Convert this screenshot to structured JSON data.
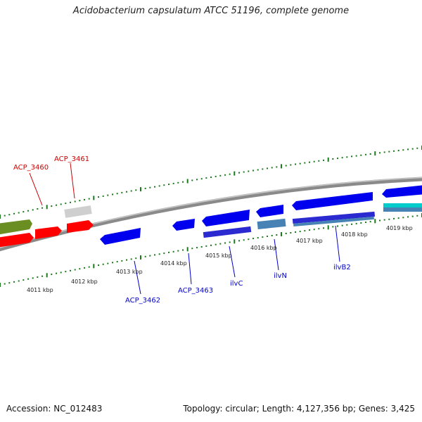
{
  "title": "Acidobacterium capsulatum ATCC 51196, complete genome",
  "footer": {
    "accession": "Accession: NC_012483",
    "summary": "Topology: circular; Length: 4,127,356 bp; Genes: 3,425"
  },
  "colors": {
    "forward_gene_red": "#ff0000",
    "forward_gene_olive": "#6b8e23",
    "forward_gene_gray": "#c8c8c8",
    "reverse_gene_blue": "#0000ee",
    "reverse_gene_steelblue": "#4682b4",
    "cyan_feature": "#00cccc",
    "red_label": "#cc0000",
    "blue_label": "#0000cc",
    "tick_green": "#1b7a1b",
    "backbone_gray": "#888888"
  },
  "scale_labels": [
    "4011 kbp",
    "4012 kbp",
    "4013 kbp",
    "4014 kbp",
    "4015 kbp",
    "4016 kbp",
    "4017 kbp",
    "4018 kbp",
    "4019 kbp"
  ],
  "gene_labels": {
    "forward": [
      "ACP_3460",
      "ACP_3461"
    ],
    "reverse": [
      "ACP_3462",
      "ACP_3463",
      "ilvC",
      "ilvN",
      "ilvB2"
    ]
  }
}
